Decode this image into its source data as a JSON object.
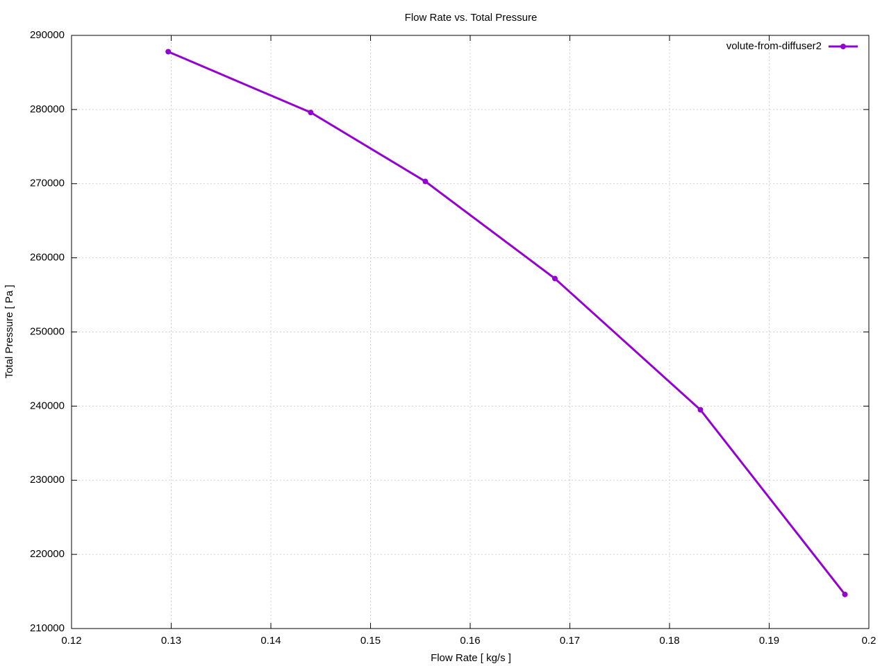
{
  "chart_data": {
    "type": "line",
    "title": "Flow Rate vs. Total Pressure",
    "x_label": "Flow Rate [ kg/s ]",
    "y_label": "Total Pressure [ Pa ]",
    "series": [
      {
        "name": "volute-from-diffuser2",
        "color": "#9400d3",
        "x": [
          0.1297,
          0.144,
          0.1555,
          0.1685,
          0.1831,
          0.1976
        ],
        "values": [
          287800,
          279600,
          270300,
          257200,
          239500,
          214600
        ]
      }
    ],
    "xlim": [
      0.12,
      0.2
    ],
    "xticks": [
      0.12,
      0.13,
      0.14,
      0.15,
      0.16,
      0.17,
      0.18,
      0.19,
      0.2
    ],
    "ylim": [
      210000,
      290000
    ],
    "yticks": [
      210000,
      220000,
      230000,
      240000,
      250000,
      260000,
      270000,
      280000,
      290000
    ],
    "grid": true,
    "legend_position": "top right"
  }
}
